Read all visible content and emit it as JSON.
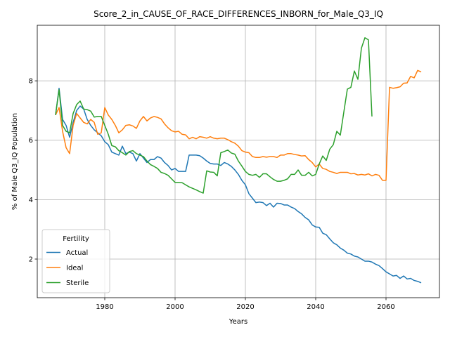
{
  "chart_data": {
    "type": "line",
    "title": "Score_2_in_CAUSE_OF_RACE_DIFFERENCES_INBORN_for_Male_Q3_IQ",
    "x_label": "Years",
    "y_label": "% of Male Q3_IQ Population",
    "legend_title": "Fertility",
    "legend_position": "lower left",
    "grid": true,
    "xlim": [
      1960.8,
      2075.2
    ],
    "ylim": [
      0.7,
      9.87
    ],
    "xticks": [
      1980,
      2000,
      2020,
      2040,
      2060
    ],
    "yticks": [
      2,
      4,
      6,
      8
    ],
    "x": [
      1966,
      1967,
      1968,
      1969,
      1970,
      1971,
      1972,
      1973,
      1974,
      1975,
      1976,
      1977,
      1978,
      1979,
      1980,
      1981,
      1982,
      1983,
      1984,
      1985,
      1986,
      1987,
      1988,
      1989,
      1990,
      1991,
      1992,
      1993,
      1994,
      1995,
      1996,
      1997,
      1998,
      1999,
      2000,
      2001,
      2002,
      2003,
      2004,
      2005,
      2006,
      2007,
      2008,
      2009,
      2010,
      2011,
      2012,
      2013,
      2014,
      2015,
      2016,
      2017,
      2018,
      2019,
      2020,
      2021,
      2022,
      2023,
      2024,
      2025,
      2026,
      2027,
      2028,
      2029,
      2030,
      2031,
      2032,
      2033,
      2034,
      2035,
      2036,
      2037,
      2038,
      2039,
      2040,
      2041,
      2042,
      2043,
      2044,
      2045,
      2046,
      2047,
      2048,
      2049,
      2050,
      2051,
      2052,
      2053,
      2054,
      2055,
      2056,
      2057,
      2058,
      2059,
      2060,
      2061,
      2062,
      2063,
      2064,
      2065,
      2066,
      2067,
      2068,
      2069,
      2070
    ],
    "series": [
      {
        "name": "Actual",
        "color": "#1f77b4",
        "values": [
          6.85,
          7.75,
          6.7,
          6.5,
          6.1,
          6.6,
          7.0,
          7.15,
          7.05,
          6.7,
          6.5,
          6.35,
          6.25,
          6.15,
          5.95,
          5.85,
          5.6,
          5.55,
          5.5,
          5.8,
          5.55,
          5.6,
          5.55,
          5.3,
          5.55,
          5.4,
          5.25,
          5.35,
          5.35,
          5.45,
          5.4,
          5.25,
          5.15,
          5.0,
          5.05,
          4.95,
          4.95,
          4.95,
          5.5,
          5.5,
          5.5,
          5.48,
          5.4,
          5.3,
          5.22,
          5.2,
          5.2,
          5.15,
          5.25,
          5.2,
          5.12,
          5.0,
          4.85,
          4.65,
          4.5,
          4.2,
          4.05,
          3.9,
          3.92,
          3.9,
          3.8,
          3.88,
          3.75,
          3.88,
          3.87,
          3.82,
          3.82,
          3.75,
          3.7,
          3.6,
          3.52,
          3.4,
          3.32,
          3.15,
          3.08,
          3.07,
          2.87,
          2.82,
          2.68,
          2.55,
          2.48,
          2.37,
          2.3,
          2.2,
          2.17,
          2.1,
          2.07,
          2.0,
          1.93,
          1.93,
          1.9,
          1.83,
          1.78,
          1.68,
          1.57,
          1.5,
          1.43,
          1.45,
          1.35,
          1.43,
          1.33,
          1.35,
          1.28,
          1.25,
          1.2
        ]
      },
      {
        "name": "Ideal",
        "color": "#ff7f0e",
        "values": [
          6.85,
          7.1,
          6.3,
          5.75,
          5.55,
          6.5,
          6.9,
          6.75,
          6.6,
          6.55,
          6.7,
          6.6,
          6.2,
          6.25,
          7.1,
          6.85,
          6.7,
          6.5,
          6.25,
          6.35,
          6.5,
          6.52,
          6.48,
          6.4,
          6.65,
          6.8,
          6.65,
          6.75,
          6.8,
          6.77,
          6.72,
          6.55,
          6.42,
          6.32,
          6.28,
          6.3,
          6.2,
          6.18,
          6.05,
          6.1,
          6.05,
          6.12,
          6.1,
          6.07,
          6.12,
          6.07,
          6.05,
          6.07,
          6.07,
          6.02,
          5.95,
          5.9,
          5.8,
          5.65,
          5.6,
          5.58,
          5.45,
          5.42,
          5.42,
          5.45,
          5.43,
          5.45,
          5.45,
          5.42,
          5.5,
          5.5,
          5.55,
          5.55,
          5.52,
          5.5,
          5.47,
          5.48,
          5.35,
          5.25,
          5.1,
          5.2,
          5.05,
          5.02,
          4.95,
          4.92,
          4.88,
          4.92,
          4.92,
          4.92,
          4.87,
          4.88,
          4.83,
          4.85,
          4.83,
          4.87,
          4.8,
          4.85,
          4.82,
          4.65,
          4.65,
          7.78,
          7.75,
          7.77,
          7.8,
          7.92,
          7.93,
          8.15,
          8.1,
          8.35,
          8.3
        ]
      },
      {
        "name": "Sterile",
        "color": "#2ca02c",
        "values": [
          6.85,
          7.7,
          6.5,
          6.3,
          6.25,
          6.9,
          7.2,
          7.32,
          7.05,
          7.03,
          6.98,
          6.78,
          6.8,
          6.8,
          6.5,
          6.2,
          5.82,
          5.78,
          5.65,
          5.58,
          5.5,
          5.62,
          5.65,
          5.55,
          5.5,
          5.45,
          5.3,
          5.18,
          5.12,
          5.05,
          4.92,
          4.88,
          4.82,
          4.7,
          4.58,
          4.58,
          4.57,
          4.5,
          4.43,
          4.38,
          4.33,
          4.27,
          4.22,
          4.97,
          4.93,
          4.92,
          4.8,
          5.58,
          5.62,
          5.67,
          5.57,
          5.53,
          5.3,
          5.13,
          4.95,
          4.85,
          4.82,
          4.85,
          4.75,
          4.87,
          4.87,
          4.77,
          4.68,
          4.62,
          4.62,
          4.65,
          4.7,
          4.85,
          4.85,
          5.0,
          4.82,
          4.82,
          4.92,
          4.8,
          4.85,
          5.2,
          5.47,
          5.32,
          5.7,
          5.85,
          6.3,
          6.17,
          6.95,
          7.72,
          7.78,
          8.33,
          8.05,
          9.1,
          9.45,
          9.38,
          6.8,
          null,
          null,
          null,
          null,
          null,
          null,
          null,
          null,
          null,
          null,
          null,
          null,
          null,
          null
        ]
      }
    ]
  }
}
